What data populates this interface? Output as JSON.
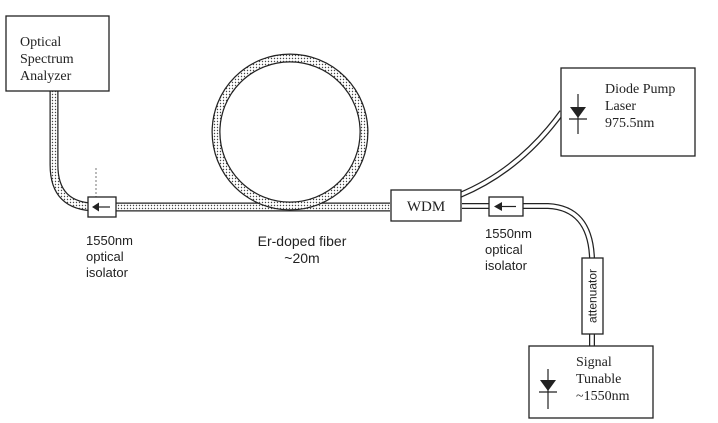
{
  "title": "",
  "components": {
    "osa": {
      "line1": "Optical",
      "line2": "Spectrum",
      "line3": "Analyzer"
    },
    "pump": {
      "line1": "Diode Pump",
      "line2": "Laser",
      "line3": "975.5nm"
    },
    "signal": {
      "line1": "Signal",
      "line2": "Tunable",
      "line3": "~1550nm"
    },
    "wdm": {
      "label": "WDM"
    },
    "attenuator": {
      "label": "attenuator"
    },
    "isolator_left": {
      "line1": "1550nm",
      "line2": "optical",
      "line3": "isolator"
    },
    "isolator_right": {
      "line1": "1550nm",
      "line2": "optical",
      "line3": "isolator"
    },
    "fiber": {
      "line1": "Er-doped fiber",
      "line2": "~20m"
    }
  },
  "colors": {
    "ink": "#222222",
    "background": "#ffffff"
  }
}
